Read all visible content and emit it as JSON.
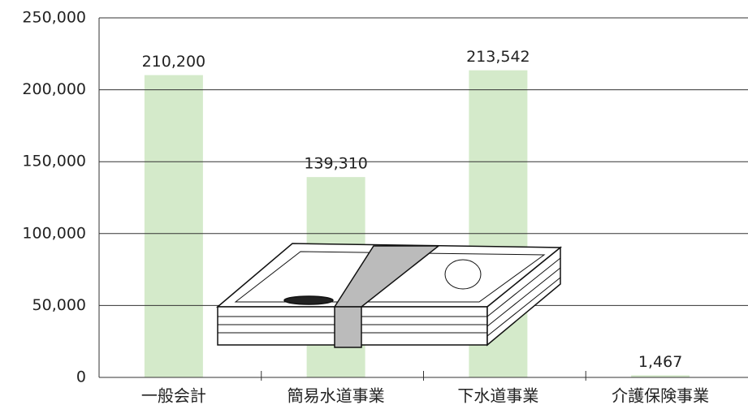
{
  "chart_data": {
    "type": "bar",
    "categories": [
      "一般会計",
      "簡易水道事業",
      "下水道事業",
      "介護保険事業"
    ],
    "values": [
      210200,
      139310,
      213542,
      1467
    ],
    "value_labels": [
      "210,200",
      "139,310",
      "213,542",
      "1,467"
    ],
    "color": "#d4eaca",
    "ylim": [
      0,
      250000
    ],
    "yticks": [
      0,
      {
        "value": 50000,
        "label": "50,000"
      },
      {
        "value": 100000,
        "label": "100,000"
      },
      {
        "value": 150000,
        "label": "150,000"
      },
      {
        "value": 200000,
        "label": "200,000"
      },
      {
        "value": 250000,
        "label": "250,000"
      }
    ],
    "grid": true
  }
}
